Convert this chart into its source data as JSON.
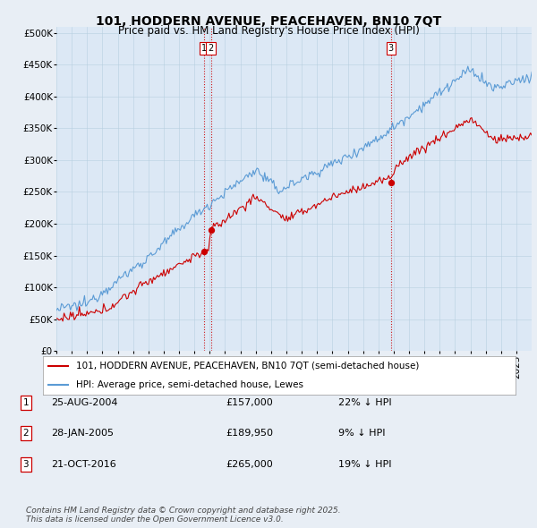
{
  "title": "101, HODDERN AVENUE, PEACEHAVEN, BN10 7QT",
  "subtitle": "Price paid vs. HM Land Registry's House Price Index (HPI)",
  "ylabel_ticks": [
    "£0",
    "£50K",
    "£100K",
    "£150K",
    "£200K",
    "£250K",
    "£300K",
    "£350K",
    "£400K",
    "£450K",
    "£500K"
  ],
  "ytick_values": [
    0,
    50000,
    100000,
    150000,
    200000,
    250000,
    300000,
    350000,
    400000,
    450000,
    500000
  ],
  "ylim": [
    0,
    510000
  ],
  "xlim_start": 1995.0,
  "xlim_end": 2025.99,
  "background_color": "#e8eef5",
  "plot_bg_color": "#dce8f5",
  "hpi_color": "#5b9bd5",
  "price_color": "#cc0000",
  "vline_color": "#cc0000",
  "vline_style": ":",
  "transaction_dates": [
    2004.646,
    2005.07,
    2016.804
  ],
  "transaction_labels": [
    "1",
    "2",
    "3"
  ],
  "legend_label_red": "101, HODDERN AVENUE, PEACEHAVEN, BN10 7QT (semi-detached house)",
  "legend_label_blue": "HPI: Average price, semi-detached house, Lewes",
  "table_data": [
    {
      "num": "1",
      "date": "25-AUG-2004",
      "price": "£157,000",
      "pct": "22% ↓ HPI"
    },
    {
      "num": "2",
      "date": "28-JAN-2005",
      "price": "£189,950",
      "pct": "9% ↓ HPI"
    },
    {
      "num": "3",
      "date": "21-OCT-2016",
      "price": "£265,000",
      "pct": "19% ↓ HPI"
    }
  ],
  "footer": "Contains HM Land Registry data © Crown copyright and database right 2025.\nThis data is licensed under the Open Government Licence v3.0.",
  "title_fontsize": 10,
  "subtitle_fontsize": 8.5,
  "tick_fontsize": 7.5,
  "legend_fontsize": 7.5,
  "table_fontsize": 8,
  "footer_fontsize": 6.5
}
